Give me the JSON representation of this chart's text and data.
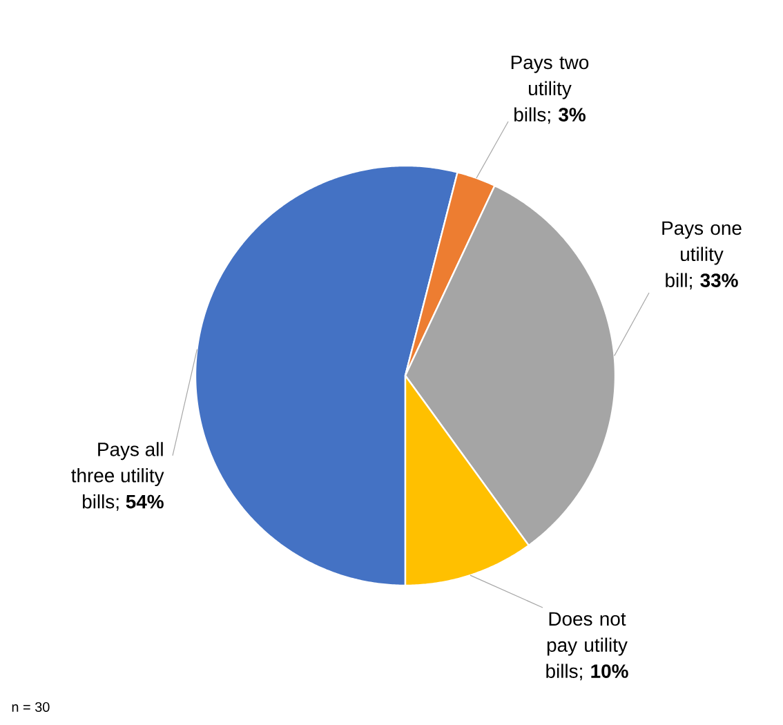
{
  "chart_data": {
    "type": "pie",
    "categories": [
      "Pays all three utility bills",
      "Pays two utility bills",
      "Pays one utility bill",
      "Does not pay utility bills"
    ],
    "values": [
      54,
      3,
      33,
      10
    ],
    "value_labels": [
      "; **54%**",
      "; **3%**",
      "; **33%**",
      "; **10%**"
    ],
    "colors": [
      "#4472c4",
      "#ed7d31",
      "#a5a5a5",
      "#ffc000"
    ],
    "annotations": [
      "n = 30"
    ]
  }
}
